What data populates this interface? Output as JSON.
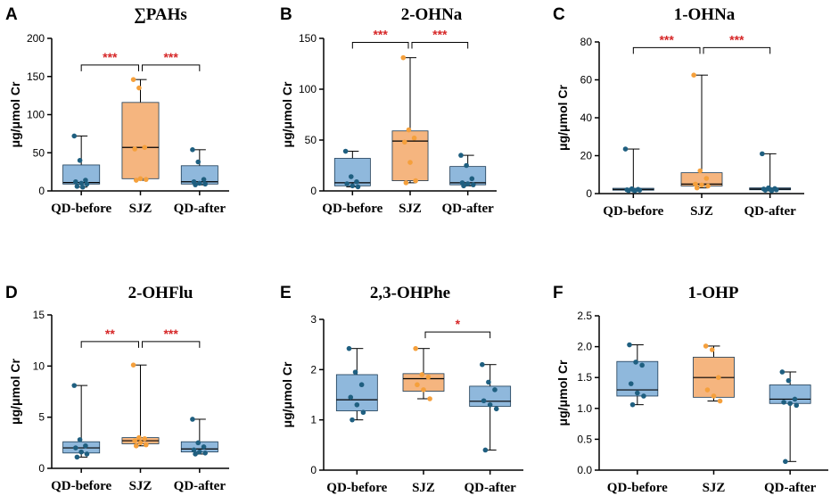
{
  "colors": {
    "blue_box": "#8fb8dc",
    "blue_point": "#1f5f80",
    "orange_box": "#f5b57f",
    "orange_point": "#f5a03c",
    "sig_text": "#d62728"
  },
  "chart_data": [
    {
      "panel": "A",
      "type": "box",
      "title": "∑PAHs",
      "ylabel": "μg/μmol Cr",
      "ylim": [
        0,
        200
      ],
      "yticks": [
        0,
        50,
        100,
        150,
        200
      ],
      "categories": [
        "QD-before",
        "SJZ",
        "QD-after"
      ],
      "boxes": [
        {
          "min": 5,
          "q1": 9,
          "median": 11,
          "q3": 34,
          "max": 72,
          "points": [
            72,
            40,
            14,
            12,
            10,
            9,
            6,
            5
          ]
        },
        {
          "min": 14,
          "q1": 16,
          "median": 57,
          "q3": 116,
          "max": 146,
          "points": [
            146,
            135,
            57,
            55,
            16,
            15,
            14
          ]
        },
        {
          "min": 8,
          "q1": 9,
          "median": 12,
          "q3": 33,
          "max": 54,
          "points": [
            54,
            38,
            15,
            12,
            10,
            9,
            8
          ]
        }
      ],
      "comparisons": [
        {
          "from": 0,
          "to": 1,
          "label": "***",
          "y": 165
        },
        {
          "from": 1,
          "to": 2,
          "label": "***",
          "y": 165
        }
      ]
    },
    {
      "panel": "B",
      "type": "box",
      "title": "2-OHNa",
      "ylabel": "μg/μmol Cr",
      "ylim": [
        0,
        150
      ],
      "yticks": [
        0,
        50,
        100,
        150
      ],
      "categories": [
        "QD-before",
        "SJZ",
        "QD-after"
      ],
      "boxes": [
        {
          "min": 4,
          "q1": 5,
          "median": 8,
          "q3": 32,
          "max": 39,
          "points": [
            39,
            14,
            9,
            7,
            5,
            4
          ]
        },
        {
          "min": 8,
          "q1": 10,
          "median": 49,
          "q3": 59,
          "max": 131,
          "points": [
            131,
            60,
            52,
            48,
            28,
            10,
            8
          ]
        },
        {
          "min": 5,
          "q1": 6,
          "median": 8,
          "q3": 24,
          "max": 35,
          "points": [
            35,
            25,
            12,
            8,
            7,
            6,
            5
          ]
        }
      ],
      "comparisons": [
        {
          "from": 0,
          "to": 1,
          "label": "***",
          "y": 146
        },
        {
          "from": 1,
          "to": 2,
          "label": "***",
          "y": 146
        }
      ]
    },
    {
      "panel": "C",
      "type": "box",
      "title": "1-OHNa",
      "ylabel": "μg/μmol Cr",
      "ylim": [
        0,
        80
      ],
      "yticks": [
        0,
        20,
        40,
        60,
        80
      ],
      "categories": [
        "QD-before",
        "SJZ",
        "QD-after"
      ],
      "boxes": [
        {
          "min": 1.5,
          "q1": 1.8,
          "median": 2.2,
          "q3": 2.8,
          "max": 23.5,
          "points": [
            23.5,
            2.5,
            2.2,
            2.0,
            1.9,
            1.8,
            1.6,
            1.5
          ]
        },
        {
          "min": 3,
          "q1": 4,
          "median": 5,
          "q3": 11,
          "max": 62.5,
          "points": [
            62.5,
            12,
            8,
            5,
            4.5,
            4,
            3
          ]
        },
        {
          "min": 1.5,
          "q1": 2,
          "median": 2.4,
          "q3": 3,
          "max": 21,
          "points": [
            21,
            3,
            2.6,
            2.4,
            2.2,
            2,
            1.8,
            1.5
          ]
        }
      ],
      "comparisons": [
        {
          "from": 0,
          "to": 1,
          "label": "***",
          "y": 77
        },
        {
          "from": 1,
          "to": 2,
          "label": "***",
          "y": 77
        }
      ]
    },
    {
      "panel": "D",
      "type": "box",
      "title": "2-OHFlu",
      "ylabel": "μg/μmol Cr",
      "ylim": [
        0,
        15
      ],
      "yticks": [
        0,
        5,
        10,
        15
      ],
      "categories": [
        "QD-before",
        "SJZ",
        "QD-after"
      ],
      "boxes": [
        {
          "min": 1.1,
          "q1": 1.5,
          "median": 2.0,
          "q3": 2.6,
          "max": 8.1,
          "points": [
            8.1,
            2.8,
            2.2,
            2.0,
            1.6,
            1.4,
            1.1
          ]
        },
        {
          "min": 2.2,
          "q1": 2.4,
          "median": 2.7,
          "q3": 3.0,
          "max": 10.1,
          "points": [
            10.1,
            3.0,
            2.9,
            2.7,
            2.5,
            2.3,
            2.2
          ]
        },
        {
          "min": 1.4,
          "q1": 1.6,
          "median": 1.9,
          "q3": 2.6,
          "max": 4.8,
          "points": [
            4.8,
            2.5,
            2.1,
            1.8,
            1.6,
            1.5,
            1.4
          ]
        }
      ],
      "comparisons": [
        {
          "from": 0,
          "to": 1,
          "label": "**",
          "y": 12.4
        },
        {
          "from": 1,
          "to": 2,
          "label": "***",
          "y": 12.4
        }
      ]
    },
    {
      "panel": "E",
      "type": "box",
      "title": "2,3-OHPhe",
      "ylabel": "μg/μmol Cr",
      "ylim": [
        0,
        3
      ],
      "yticks": [
        0,
        1,
        2,
        3
      ],
      "categories": [
        "QD-before",
        "SJZ",
        "QD-after"
      ],
      "boxes": [
        {
          "min": 1.0,
          "q1": 1.18,
          "median": 1.4,
          "q3": 1.9,
          "max": 2.42,
          "points": [
            2.42,
            1.95,
            1.7,
            1.45,
            1.3,
            1.15,
            1.0
          ]
        },
        {
          "min": 1.42,
          "q1": 1.57,
          "median": 1.82,
          "q3": 1.92,
          "max": 2.42,
          "points": [
            2.42,
            1.9,
            1.85,
            1.7,
            1.6,
            1.42
          ]
        },
        {
          "min": 0.4,
          "q1": 1.27,
          "median": 1.37,
          "q3": 1.67,
          "max": 2.1,
          "points": [
            2.1,
            1.75,
            1.6,
            1.38,
            1.3,
            1.22,
            0.4
          ]
        }
      ],
      "comparisons": [
        {
          "from": 1,
          "to": 2,
          "label": "*",
          "y": 2.75
        }
      ]
    },
    {
      "panel": "F",
      "type": "box",
      "title": "1-OHP",
      "ylabel": "μg/μmol Cr",
      "ylim": [
        0,
        2.5
      ],
      "yticks": [
        0.0,
        0.5,
        1.0,
        1.5,
        2.0,
        2.5
      ],
      "categories": [
        "QD-before",
        "SJZ",
        "QD-after"
      ],
      "boxes": [
        {
          "min": 1.06,
          "q1": 1.2,
          "median": 1.3,
          "q3": 1.76,
          "max": 2.03,
          "points": [
            2.03,
            1.75,
            1.7,
            1.4,
            1.25,
            1.2,
            1.06
          ]
        },
        {
          "min": 1.12,
          "q1": 1.18,
          "median": 1.5,
          "q3": 1.83,
          "max": 2.01,
          "points": [
            2.01,
            1.95,
            1.5,
            1.3,
            1.2,
            1.12
          ]
        },
        {
          "min": 0.14,
          "q1": 1.08,
          "median": 1.15,
          "q3": 1.38,
          "max": 1.59,
          "points": [
            1.59,
            1.45,
            1.15,
            1.1,
            1.08,
            1.05,
            0.14
          ]
        }
      ],
      "comparisons": []
    }
  ]
}
